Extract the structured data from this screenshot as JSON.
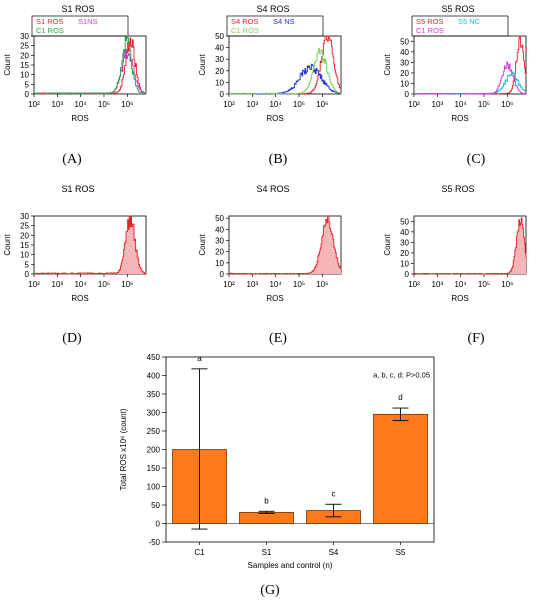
{
  "colors": {
    "red": "#e8202a",
    "magenta": "#d63cd6",
    "green": "#2aa14a",
    "light_green": "#7fcf5a",
    "blue": "#2433c8",
    "cyan": "#22b7d9",
    "fill_pink": "#f4b6b6",
    "bar_orange": "#ff7a1a",
    "bar_edge": "#7a3300"
  },
  "panels": [
    {
      "id": "A",
      "label": "(A)",
      "title": "S1 ROS",
      "xlabel": "ROS",
      "ylabel": "Count",
      "xticks": [
        "10²",
        "10³",
        "10⁴",
        "10⁵",
        "10⁶"
      ],
      "yticks": [
        "0",
        "5",
        "10",
        "15",
        "20",
        "25",
        "30"
      ],
      "ymax": 30,
      "legend": [
        {
          "text": "S1 ROS",
          "color": "#e8202a"
        },
        {
          "text": "S1NS",
          "color": "#d63cd6"
        },
        {
          "text": "C1 ROS",
          "color": "#2aa14a"
        }
      ]
    },
    {
      "id": "B",
      "label": "(B)",
      "title": "S4  ROS",
      "xlabel": "ROS",
      "ylabel": "Count",
      "xticks": [
        "10²",
        "10³",
        "10⁴",
        "10⁵",
        "10⁶"
      ],
      "yticks": [
        "0",
        "10",
        "20",
        "30",
        "40",
        "50"
      ],
      "ymax": 50,
      "legend": [
        {
          "text": "S4  ROS",
          "color": "#e8202a"
        },
        {
          "text": "S4 NS",
          "color": "#2433c8"
        },
        {
          "text": "C1 ROS",
          "color": "#7fcf5a"
        }
      ]
    },
    {
      "id": "C",
      "label": "(C)",
      "title": "S5 ROS",
      "xlabel": "ROS",
      "ylabel": "Count",
      "xticks": [
        "10²",
        "10³",
        "10⁴",
        "10⁵",
        "10⁶"
      ],
      "yticks": [
        "0",
        "10",
        "20",
        "30",
        "40",
        "50"
      ],
      "ymax": 55,
      "legend": [
        {
          "text": "S5 ROS",
          "color": "#e8202a"
        },
        {
          "text": "S5 NC",
          "color": "#22b7d9"
        },
        {
          "text": "C1 ROS",
          "color": "#d63cd6"
        }
      ]
    },
    {
      "id": "D",
      "label": "(D)",
      "title": "S1 ROS",
      "xlabel": "ROS",
      "ylabel": "Count",
      "xticks": [
        "10²",
        "10³",
        "10⁴",
        "10⁵",
        "10⁶"
      ],
      "yticks": [
        "0",
        "5",
        "10",
        "15",
        "20",
        "25",
        "30"
      ],
      "ymax": 30
    },
    {
      "id": "E",
      "label": "(E)",
      "title": "S4  ROS",
      "xlabel": "ROS",
      "ylabel": "Count",
      "xticks": [
        "10²",
        "10³",
        "10⁴",
        "10⁵",
        "10⁶"
      ],
      "yticks": [
        "0",
        "10",
        "20",
        "30",
        "40",
        "50"
      ],
      "ymax": 52
    },
    {
      "id": "F",
      "label": "(F)",
      "title": "S5 ROS",
      "xlabel": "ROS",
      "ylabel": "Count",
      "xticks": [
        "10²",
        "10³",
        "10⁴",
        "10⁵",
        "10⁶"
      ],
      "yticks": [
        "0",
        "10",
        "20",
        "30",
        "40",
        "50"
      ],
      "ymax": 55
    }
  ],
  "chart_data": [
    {
      "type": "area",
      "panel": "A",
      "title": "S1 ROS",
      "xlabel": "ROS",
      "ylabel": "Count",
      "x_scale": "log",
      "ylim": [
        0,
        30
      ],
      "series": [
        {
          "name": "S1 ROS",
          "color": "#e8202a",
          "peak_x": 1300000,
          "peak_y": 28,
          "width": 0.14,
          "noise": 0.18
        },
        {
          "name": "S1NS",
          "color": "#d63cd6",
          "peak_x": 1000000,
          "peak_y": 22,
          "width": 0.17,
          "noise": 0.2
        },
        {
          "name": "C1 ROS",
          "color": "#2aa14a",
          "peak_x": 900000,
          "peak_y": 27,
          "width": 0.15,
          "noise": 0.2
        }
      ]
    },
    {
      "type": "area",
      "panel": "B",
      "title": "S4  ROS",
      "xlabel": "ROS",
      "ylabel": "Count",
      "x_scale": "log",
      "ylim": [
        0,
        50
      ],
      "series": [
        {
          "name": "S4  ROS",
          "color": "#e8202a",
          "peak_x": 1600000,
          "peak_y": 50,
          "width": 0.18,
          "noise": 0.12
        },
        {
          "name": "S4 NS",
          "color": "#2433c8",
          "peak_x": 300000,
          "peak_y": 23,
          "width": 0.32,
          "noise": 0.18
        },
        {
          "name": "C1 ROS",
          "color": "#7fcf5a",
          "peak_x": 800000,
          "peak_y": 35,
          "width": 0.2,
          "noise": 0.15
        }
      ]
    },
    {
      "type": "area",
      "panel": "C",
      "title": "S5 ROS",
      "xlabel": "ROS",
      "ylabel": "Count",
      "x_scale": "log",
      "ylim": [
        0,
        55
      ],
      "series": [
        {
          "name": "S5 ROS",
          "color": "#e8202a",
          "peak_x": 3500000,
          "peak_y": 50,
          "width": 0.12,
          "noise": 0.12
        },
        {
          "name": "S5 NC",
          "color": "#22b7d9",
          "peak_x": 1500000,
          "peak_y": 18,
          "width": 0.2,
          "noise": 0.18
        },
        {
          "name": "C1 ROS",
          "color": "#d63cd6",
          "peak_x": 1000000,
          "peak_y": 28,
          "width": 0.16,
          "noise": 0.15
        }
      ]
    },
    {
      "type": "area",
      "panel": "D",
      "title": "S1 ROS",
      "xlabel": "ROS",
      "ylabel": "Count",
      "x_scale": "log",
      "ylim": [
        0,
        30
      ],
      "series": [
        {
          "name": "S1 ROS",
          "color": "#e8202a",
          "fill": true,
          "peak_x": 1300000,
          "peak_y": 29,
          "width": 0.14,
          "noise": 0.18
        }
      ]
    },
    {
      "type": "area",
      "panel": "E",
      "title": "S4  ROS",
      "xlabel": "ROS",
      "ylabel": "Count",
      "x_scale": "log",
      "ylim": [
        0,
        52
      ],
      "series": [
        {
          "name": "S4  ROS",
          "color": "#e8202a",
          "fill": true,
          "peak_x": 1600000,
          "peak_y": 50,
          "width": 0.18,
          "noise": 0.12
        }
      ]
    },
    {
      "type": "area",
      "panel": "F",
      "title": "S5 ROS",
      "xlabel": "ROS",
      "ylabel": "Count",
      "x_scale": "log",
      "ylim": [
        0,
        55
      ],
      "series": [
        {
          "name": "S5 ROS",
          "color": "#e8202a",
          "fill": true,
          "peak_x": 3500000,
          "peak_y": 51,
          "width": 0.12,
          "noise": 0.12
        }
      ]
    },
    {
      "type": "bar",
      "panel": "G",
      "label": "(G)",
      "categories": [
        "C1",
        "S1",
        "S4",
        "S5"
      ],
      "values": [
        200,
        30,
        35,
        295
      ],
      "error_low": [
        -15,
        27,
        18,
        278
      ],
      "error_high": [
        418,
        33,
        52,
        312
      ],
      "letters": [
        "a",
        "b",
        "c",
        "d"
      ],
      "annotation": "a, b, c, d; P>0.05",
      "xlabel": "Samples and control (n)",
      "ylabel": "Total ROS x10⁶ (count)",
      "ylim": [
        -50,
        450
      ],
      "yticks": [
        "-50",
        "0",
        "50",
        "100",
        "150",
        "200",
        "250",
        "300",
        "350",
        "400",
        "450"
      ]
    }
  ]
}
